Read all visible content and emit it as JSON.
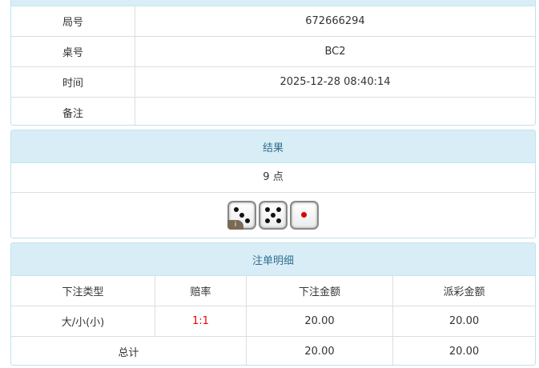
{
  "info": {
    "rows": [
      {
        "label": "局号",
        "value": "672666294"
      },
      {
        "label": "桌号",
        "value": "BC2"
      },
      {
        "label": "时间",
        "value": "2025-12-28 08:40:14"
      },
      {
        "label": "备注",
        "value": ""
      }
    ]
  },
  "result": {
    "title": "结果",
    "points": "9 点",
    "dice": [
      3,
      5,
      1
    ],
    "info_badge": "i"
  },
  "bets": {
    "title": "注单明细",
    "headers": [
      "下注类型",
      "赔率",
      "下注金额",
      "派彩金额"
    ],
    "rows": [
      {
        "type": "大/小(小)",
        "odds": "1:1",
        "amount": "20.00",
        "payout": "20.00"
      }
    ],
    "total": {
      "label": "总计",
      "amount": "20.00",
      "payout": "20.00"
    }
  },
  "colors": {
    "header_bg": "#d9edf7",
    "header_text": "#31708f",
    "odds": "#ee0000"
  }
}
